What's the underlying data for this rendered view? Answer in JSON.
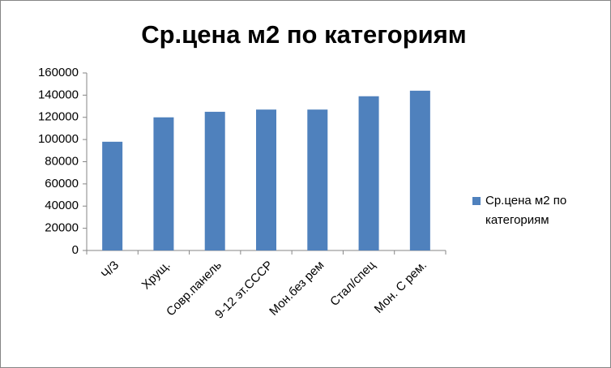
{
  "chart_data": {
    "type": "bar",
    "title": "Ср.цена м2 по категориям",
    "categories": [
      "Ч/З",
      "Хрущ.",
      "Совр.панель",
      "9-12 эт.СССР",
      "Мон.без рем",
      "Стал/спец",
      "Мон. С рем."
    ],
    "series": [
      {
        "name": "Ср.цена м2 по категориям",
        "color": "#4f81bd",
        "values": [
          98000,
          120000,
          125000,
          127000,
          127000,
          139000,
          144000
        ]
      }
    ],
    "ylim": [
      0,
      160000
    ],
    "yticks": [
      0,
      20000,
      40000,
      60000,
      80000,
      100000,
      120000,
      140000,
      160000
    ],
    "grid": false,
    "legend": "right"
  }
}
